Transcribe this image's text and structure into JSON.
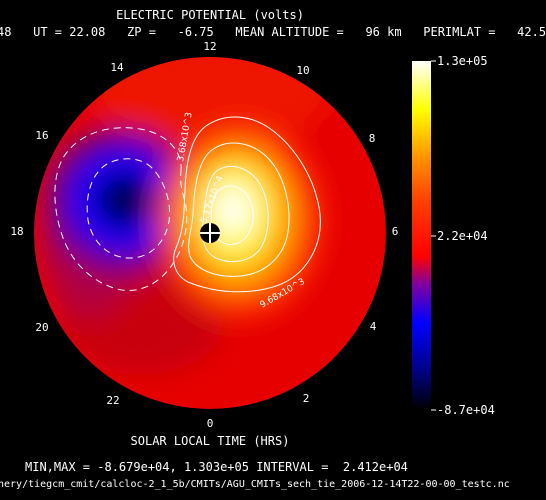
{
  "chart_data": {
    "type": "heatmap",
    "projection": "polar",
    "title": "ELECTRIC POTENTIAL (volts)",
    "subtitle": "48   UT = 22.08   ZP =   -6.75   MEAN ALTITUDE =   96 km   PERIMLAT =   42.5",
    "xlabel": "SOLAR LOCAL TIME (HRS)",
    "angular_ticks": [
      "12",
      "10",
      "8",
      "6",
      "4",
      "2",
      "0",
      "22",
      "20",
      "18",
      "16",
      "14"
    ],
    "colorbar": {
      "max_label": "1.3e+05",
      "mid_label": "2.2e+04",
      "min_label": "-8.7e+04",
      "min": -86790,
      "max": 130300,
      "colors": [
        "#000000",
        "#0000ff",
        "#ff0000",
        "#ffff00",
        "#ffffff"
      ]
    },
    "contour_interval": 24120,
    "contour_labels": [
      "3.68x10^3",
      "5.17x10^4",
      "9.68x10^3"
    ],
    "extrema": {
      "min": {
        "value": -86790,
        "local_time": 17.5,
        "colatitude_fraction": 0.38
      },
      "max": {
        "value": 130300,
        "local_time": 7.0,
        "colatitude_fraction": 0.1
      }
    },
    "summary": "MIN,MAX = -8.679e+04, 1.303e+05 INTERVAL =  2.412e+04",
    "file_path": "nery/tiegcm_cmit/calcloc-2_1_5b/CMITs/AGU_CMITs_sech_tie_2006-12-14T22-00-00_testc.nc"
  },
  "colors": {
    "background": "#000000",
    "text": "#ffffff",
    "contour": "#ffffff"
  },
  "icons": {
    "pole_marker": "crosshair-circle-icon"
  }
}
